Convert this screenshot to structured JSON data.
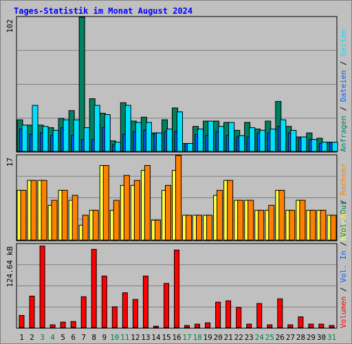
{
  "title": "Tages-Statistik im Monat August 2024",
  "days": [
    "1",
    "2",
    "3",
    "4",
    "5",
    "6",
    "7",
    "8",
    "9",
    "10",
    "11",
    "12",
    "13",
    "14",
    "15",
    "16",
    "17",
    "18",
    "19",
    "20",
    "21",
    "22",
    "23",
    "24",
    "25",
    "26",
    "27",
    "28",
    "29",
    "30",
    "31"
  ],
  "weekend_days": [
    "3",
    "4",
    "10",
    "11",
    "17",
    "18",
    "24",
    "25",
    "31"
  ],
  "colors": {
    "frame_bg": "#c0c0c0",
    "title": "#0000ff",
    "anfragen": "#008060",
    "dateien": "#0060ff",
    "seiten": "#00e0ff",
    "besuche": "#ffff40",
    "rechner": "#ff8000",
    "volumen": "#ff0000",
    "weekend": "#008040"
  },
  "chart_data": [
    {
      "type": "bar",
      "panel": "hits",
      "ymax_label": "102",
      "ymax": 102,
      "side_labels": [
        "Anfragen",
        "Dateien",
        "Seiten"
      ],
      "series": [
        {
          "name": "Anfragen",
          "values": [
            24,
            20,
            20,
            18,
            25,
            31,
            102,
            40,
            29,
            8,
            37,
            23,
            26,
            14,
            24,
            33,
            6,
            19,
            23,
            23,
            22,
            16,
            22,
            17,
            23,
            38,
            19,
            11,
            14,
            10,
            7
          ]
        },
        {
          "name": "Dateien",
          "values": [
            17,
            13,
            14,
            12,
            18,
            12,
            9,
            9,
            18,
            5,
            13,
            15,
            16,
            14,
            15,
            15,
            6,
            13,
            12,
            15,
            12,
            11,
            11,
            14,
            14,
            19,
            14,
            10,
            9,
            6,
            7
          ]
        },
        {
          "name": "Seiten",
          "values": [
            20,
            35,
            19,
            16,
            24,
            24,
            18,
            35,
            28,
            7,
            35,
            22,
            22,
            14,
            17,
            30,
            6,
            17,
            23,
            19,
            22,
            12,
            18,
            16,
            17,
            24,
            16,
            11,
            9,
            7,
            7
          ]
        }
      ]
    },
    {
      "type": "bar",
      "panel": "visits",
      "ymax_label": "17",
      "ymax": 17,
      "side_labels": [
        "Besuche",
        "Rechner"
      ],
      "series": [
        {
          "name": "Besuche",
          "values": [
            10,
            12,
            12,
            7,
            10,
            8,
            3,
            6,
            15,
            6,
            11,
            11,
            14,
            4,
            10,
            14,
            5,
            5,
            5,
            9,
            12,
            8,
            8,
            6,
            6,
            10,
            6,
            8,
            6,
            6,
            5
          ]
        },
        {
          "name": "Rechner",
          "values": [
            10,
            12,
            12,
            8,
            10,
            9,
            5,
            6,
            15,
            8,
            13,
            12,
            15,
            4,
            11,
            17,
            5,
            5,
            5,
            10,
            12,
            8,
            8,
            6,
            7,
            10,
            6,
            8,
            6,
            6,
            5
          ]
        }
      ]
    },
    {
      "type": "bar",
      "panel": "volume",
      "ymax_label": "124.64 kB",
      "ymax": 124.64,
      "side_labels": [
        "Volumen",
        "Vol. In",
        "Vol. Out"
      ],
      "series": [
        {
          "name": "Volumen",
          "values": [
            18,
            47,
            122,
            4,
            8,
            9,
            46,
            117,
            77,
            31,
            52,
            42,
            77,
            2,
            66,
            116,
            3,
            5,
            7,
            38,
            40,
            30,
            5,
            36,
            4,
            43,
            4,
            16,
            5,
            5,
            3
          ]
        }
      ]
    }
  ]
}
